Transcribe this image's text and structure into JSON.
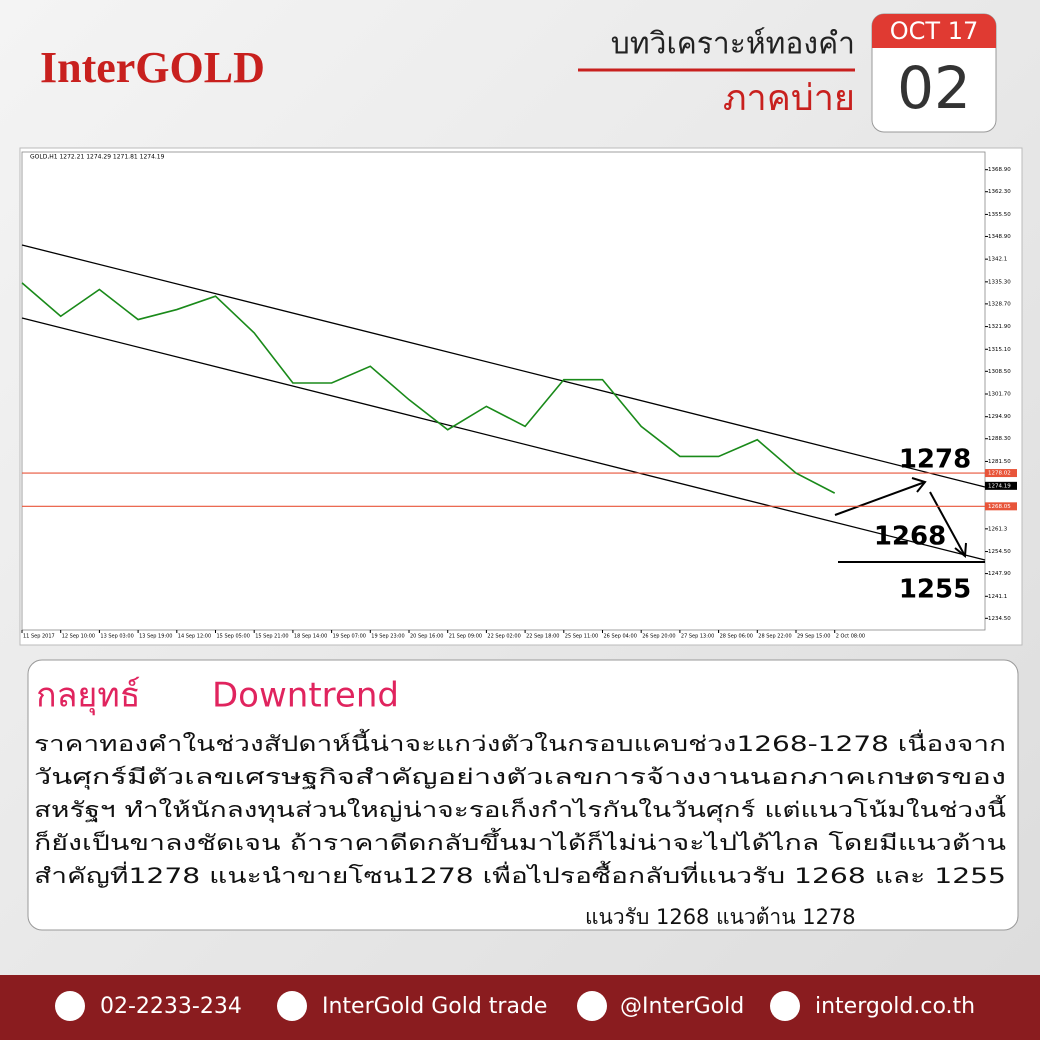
{
  "header": {
    "logo": "InterGOLD",
    "title": "บทวิเคราะห์ทองคำ",
    "subtitle": "ภาคบ่าย",
    "month": "OCT 17",
    "day": "02"
  },
  "chart_data": {
    "type": "line",
    "title": "GOLD,H1  1272.21 1274.29 1271.81 1274.19",
    "color": "#1a8a1a",
    "categories": [
      "11 Sep 2017",
      "12 Sep 10:00",
      "13 Sep 03:00",
      "13 Sep 19:00",
      "14 Sep 12:00",
      "15 Sep 05:00",
      "15 Sep 21:00",
      "18 Sep 14:00",
      "19 Sep 07:00",
      "19 Sep 23:00",
      "20 Sep 16:00",
      "21 Sep 09:00",
      "22 Sep 02:00",
      "22 Sep 18:00",
      "25 Sep 11:00",
      "26 Sep 04:00",
      "26 Sep 20:00",
      "27 Sep 13:00",
      "28 Sep 06:00",
      "28 Sep 22:00",
      "29 Sep 15:00",
      "2 Oct 08:00"
    ],
    "values": [
      1335,
      1325,
      1333,
      1324,
      1327,
      1331,
      1320,
      1305,
      1305,
      1310,
      1300,
      1291,
      1298,
      1292,
      1306,
      1306,
      1292,
      1283,
      1283,
      1288,
      1278,
      1272
    ],
    "ylim": [
      1231.0,
      1374.2
    ],
    "yticks": [
      {
        "value": 1368.9,
        "label": "1368.90"
      },
      {
        "value": 1362.3,
        "label": "1362.30"
      },
      {
        "value": 1355.5,
        "label": "1355.50"
      },
      {
        "value": 1348.9,
        "label": "1348.90"
      },
      1342.1,
      {
        "value": 1335.3,
        "label": "1335.30"
      },
      {
        "value": 1328.7,
        "label": "1328.70"
      },
      {
        "value": 1321.9,
        "label": "1321.90"
      },
      {
        "value": 1315.1,
        "label": "1315.10"
      },
      {
        "value": 1308.5,
        "label": "1308.50"
      },
      {
        "value": 1301.7,
        "label": "1301.70"
      },
      {
        "value": 1294.9,
        "label": "1294.90"
      },
      {
        "value": 1288.3,
        "label": "1288.30"
      },
      {
        "value": 1281.5,
        "label": "1281.50"
      },
      1261.3,
      {
        "value": 1254.5,
        "label": "1254.50"
      },
      {
        "value": 1247.9,
        "label": "1247.90"
      },
      1241.1,
      {
        "value": 1234.5,
        "label": "1234.50"
      }
    ],
    "levels": [
      {
        "value": 1278.02,
        "label": "1278.02",
        "color": "#e8553a"
      },
      {
        "value": 1268.05,
        "label": "1268.05",
        "color": "#e8553a"
      }
    ],
    "last_price": 1274.19,
    "annotations": [
      "1278",
      "1268",
      "1255"
    ]
  },
  "strategy": {
    "title": "กลยุทธ์",
    "trend": "Downtrend",
    "lines": [
      "ราคาทองคำในช่วงสัปดาห์นี้น่าจะแกว่งตัวในกรอบแคบช่วง1268-1278 เนื่องจาก",
      "วันศุกร์มีตัวเลขเศรษฐกิจสำคัญอย่างตัวเลขการจ้างงานนอกภาคเกษตรของ",
      "สหรัฐฯ ทำให้นักลงทุนส่วนใหญ่น่าจะรอเก็งกำไรกันในวันศุกร์ แต่แนวโน้มในช่วงนี้",
      "ก็ยังเป็นขาลงชัดเจน ถ้าราคาดีดกลับขึ้นมาได้ก็ไม่น่าจะไปได้ไกล โดยมีแนวต้าน",
      "สำคัญที่1278 แนะนำขายโซน1278 เพื่อไปรอซื้อกลับที่แนวรับ 1268 และ 1255"
    ],
    "summary": "แนวรับ 1268  แนวต้าน 1278"
  },
  "footer": {
    "phone": "02-2233-234",
    "facebook": "InterGold Gold trade",
    "line": "@InterGold",
    "web": "intergold.co.th"
  }
}
